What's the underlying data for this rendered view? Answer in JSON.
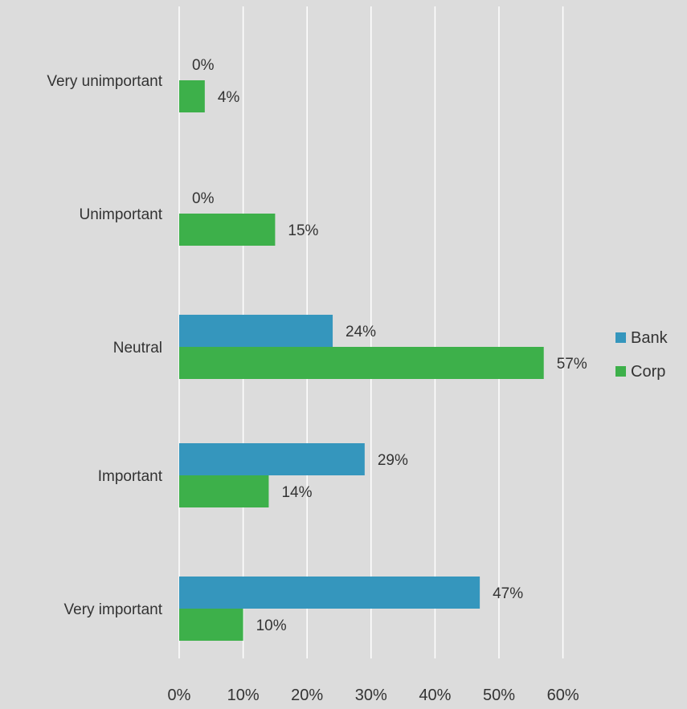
{
  "chart_data": {
    "type": "bar",
    "orientation": "horizontal",
    "categories": [
      "Very unimportant",
      "Unimportant",
      "Neutral",
      "Important",
      "Very important"
    ],
    "series": [
      {
        "name": "Bank",
        "color": "#3596bd",
        "values": [
          0,
          0,
          24,
          29,
          47
        ]
      },
      {
        "name": "Corp",
        "color": "#3db04a",
        "values": [
          4,
          15,
          57,
          14,
          10
        ]
      }
    ],
    "data_labels": {
      "Bank": [
        "0%",
        "0%",
        "24%",
        "29%",
        "47%"
      ],
      "Corp": [
        "4%",
        "15%",
        "57%",
        "14%",
        "10%"
      ]
    },
    "x_ticks": [
      "0%",
      "10%",
      "20%",
      "30%",
      "40%",
      "50%",
      "60%"
    ],
    "xlim": [
      0,
      60
    ],
    "grid": true,
    "legend_position": "right",
    "title": "",
    "xlabel": "",
    "ylabel": ""
  }
}
